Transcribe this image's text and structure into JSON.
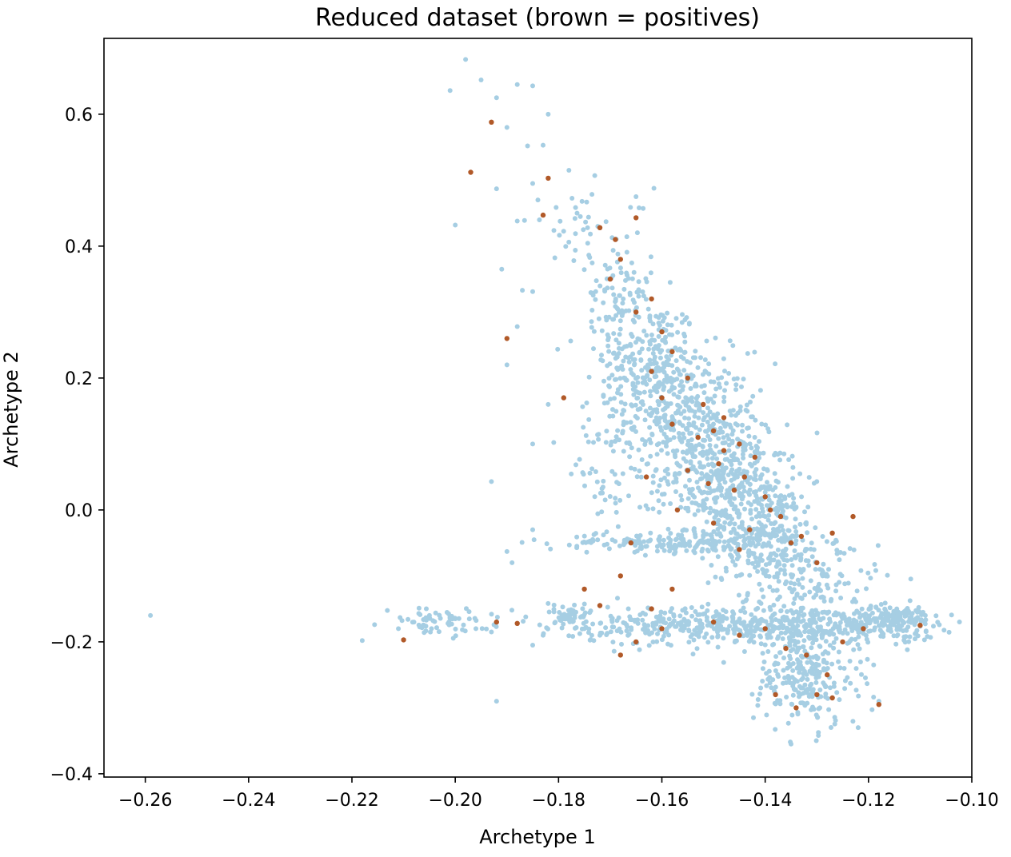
{
  "chart_data": {
    "type": "scatter",
    "title": "Reduced dataset (brown = positives)",
    "xlabel": "Archetype 1",
    "ylabel": "Archetype 2",
    "xlim": [
      -0.268,
      -0.1
    ],
    "ylim": [
      -0.405,
      0.715
    ],
    "xticks": [
      -0.26,
      -0.24,
      -0.22,
      -0.2,
      -0.18,
      -0.16,
      -0.14,
      -0.12,
      -0.1
    ],
    "xtick_labels": [
      "−0.26",
      "−0.24",
      "−0.22",
      "−0.20",
      "−0.18",
      "−0.16",
      "−0.14",
      "−0.12",
      "−0.10"
    ],
    "yticks": [
      -0.4,
      -0.2,
      0.0,
      0.2,
      0.4,
      0.6
    ],
    "ytick_labels": [
      "−0.4",
      "−0.2",
      "0.0",
      "0.2",
      "0.4",
      "0.6"
    ],
    "grid": false,
    "series": [
      {
        "color": "#a6cee3",
        "points": [
          [
            -0.259,
            -0.16
          ],
          [
            -0.218,
            -0.198
          ],
          [
            -0.192,
            -0.29
          ],
          [
            -0.2,
            0.432
          ],
          [
            -0.201,
            0.636
          ],
          [
            -0.198,
            0.683
          ],
          [
            -0.195,
            0.652
          ],
          [
            -0.192,
            0.625
          ],
          [
            -0.19,
            0.58
          ],
          [
            -0.188,
            0.645
          ],
          [
            -0.185,
            0.643
          ],
          [
            -0.182,
            0.6
          ],
          [
            -0.186,
            0.552
          ],
          [
            -0.183,
            0.553
          ],
          [
            -0.185,
            0.495
          ],
          [
            -0.192,
            0.487
          ],
          [
            -0.188,
            0.438
          ],
          [
            -0.178,
            0.515
          ],
          [
            -0.184,
            0.47
          ],
          [
            -0.191,
            0.365
          ],
          [
            -0.187,
            0.333
          ],
          [
            -0.185,
            0.331
          ],
          [
            -0.188,
            0.278
          ],
          [
            -0.19,
            0.22
          ],
          [
            -0.193,
            0.043
          ],
          [
            -0.189,
            -0.08
          ],
          [
            -0.19,
            -0.063
          ],
          [
            -0.185,
            -0.03
          ],
          [
            -0.185,
            0.1
          ],
          [
            -0.182,
            0.16
          ],
          [
            -0.165,
            0.475
          ],
          [
            -0.211,
            -0.18
          ],
          [
            -0.208,
            -0.17
          ],
          [
            -0.205,
            -0.16
          ],
          [
            -0.2,
            -0.165
          ],
          [
            -0.196,
            -0.18
          ],
          [
            -0.193,
            -0.185
          ],
          [
            -0.185,
            -0.205
          ],
          [
            -0.183,
            -0.19
          ],
          [
            -0.112,
            -0.165
          ],
          [
            -0.109,
            -0.16
          ],
          [
            -0.122,
            -0.33
          ],
          [
            -0.135,
            -0.355
          ],
          [
            -0.118,
            -0.29
          ],
          [
            -0.119,
            -0.235
          ]
        ],
        "clusters": [
          {
            "cx": -0.162,
            "cy": 0.22,
            "sx": 0.0045,
            "sy": 0.05,
            "n": 220,
            "rot": 0.0
          },
          {
            "cx": -0.155,
            "cy": 0.14,
            "sx": 0.006,
            "sy": 0.05,
            "n": 300,
            "rot": 0.0
          },
          {
            "cx": -0.148,
            "cy": 0.05,
            "sx": 0.006,
            "sy": 0.05,
            "n": 380,
            "rot": 0.0
          },
          {
            "cx": -0.14,
            "cy": -0.04,
            "sx": 0.006,
            "sy": 0.045,
            "n": 320,
            "rot": 0.0
          },
          {
            "cx": -0.168,
            "cy": 0.33,
            "sx": 0.003,
            "sy": 0.035,
            "n": 90,
            "rot": 0.0
          },
          {
            "cx": -0.158,
            "cy": -0.05,
            "sx": 0.012,
            "sy": 0.008,
            "n": 180,
            "rot": 0.0
          },
          {
            "cx": -0.13,
            "cy": -0.175,
            "sx": 0.012,
            "sy": 0.015,
            "n": 320,
            "rot": 0.0
          },
          {
            "cx": -0.155,
            "cy": -0.175,
            "sx": 0.012,
            "sy": 0.015,
            "n": 260,
            "rot": 0.0
          },
          {
            "cx": -0.115,
            "cy": -0.165,
            "sx": 0.004,
            "sy": 0.01,
            "n": 120,
            "rot": 0.0
          },
          {
            "cx": -0.132,
            "cy": -0.25,
            "sx": 0.005,
            "sy": 0.04,
            "n": 260,
            "rot": 0.0
          },
          {
            "cx": -0.13,
            "cy": -0.11,
            "sx": 0.006,
            "sy": 0.03,
            "n": 90,
            "rot": 0.0
          },
          {
            "cx": -0.203,
            "cy": -0.17,
            "sx": 0.005,
            "sy": 0.01,
            "n": 60,
            "rot": 0.0
          },
          {
            "cx": -0.178,
            "cy": -0.16,
            "sx": 0.004,
            "sy": 0.01,
            "n": 50,
            "rot": 0.0
          },
          {
            "cx": -0.17,
            "cy": 0.1,
            "sx": 0.005,
            "sy": 0.08,
            "n": 90,
            "rot": 0.0
          },
          {
            "cx": -0.174,
            "cy": 0.43,
            "sx": 0.006,
            "sy": 0.03,
            "n": 40,
            "rot": 0.0
          }
        ]
      },
      {
        "color": "#b15928",
        "points": [
          [
            -0.193,
            0.588
          ],
          [
            -0.197,
            0.512
          ],
          [
            -0.182,
            0.503
          ],
          [
            -0.183,
            0.447
          ],
          [
            -0.172,
            0.428
          ],
          [
            -0.165,
            0.443
          ],
          [
            -0.169,
            0.41
          ],
          [
            -0.168,
            0.38
          ],
          [
            -0.19,
            0.26
          ],
          [
            -0.179,
            0.17
          ],
          [
            -0.21,
            -0.197
          ],
          [
            -0.192,
            -0.17
          ],
          [
            -0.188,
            -0.172
          ],
          [
            -0.175,
            -0.12
          ],
          [
            -0.172,
            -0.145
          ],
          [
            -0.165,
            -0.2
          ],
          [
            -0.11,
            -0.175
          ],
          [
            -0.118,
            -0.295
          ],
          [
            -0.123,
            -0.01
          ],
          [
            -0.127,
            -0.035
          ],
          [
            -0.162,
            0.32
          ],
          [
            -0.165,
            0.3
          ],
          [
            -0.16,
            0.27
          ],
          [
            -0.158,
            0.24
          ],
          [
            -0.155,
            0.2
          ],
          [
            -0.16,
            0.17
          ],
          [
            -0.152,
            0.16
          ],
          [
            -0.148,
            0.14
          ],
          [
            -0.15,
            0.12
          ],
          [
            -0.145,
            0.1
          ],
          [
            -0.148,
            0.09
          ],
          [
            -0.142,
            0.08
          ],
          [
            -0.155,
            0.06
          ],
          [
            -0.151,
            0.04
          ],
          [
            -0.146,
            0.03
          ],
          [
            -0.14,
            0.02
          ],
          [
            -0.157,
            0.0
          ],
          [
            -0.15,
            -0.02
          ],
          [
            -0.143,
            -0.03
          ],
          [
            -0.137,
            -0.01
          ],
          [
            -0.135,
            -0.05
          ],
          [
            -0.145,
            -0.06
          ],
          [
            -0.13,
            -0.08
          ],
          [
            -0.125,
            -0.2
          ],
          [
            -0.128,
            -0.25
          ],
          [
            -0.132,
            -0.22
          ],
          [
            -0.136,
            -0.21
          ],
          [
            -0.14,
            -0.18
          ],
          [
            -0.13,
            -0.28
          ],
          [
            -0.127,
            -0.285
          ],
          [
            -0.145,
            -0.19
          ],
          [
            -0.15,
            -0.17
          ],
          [
            -0.16,
            -0.18
          ],
          [
            -0.168,
            -0.22
          ],
          [
            -0.17,
            0.35
          ],
          [
            -0.162,
            0.21
          ],
          [
            -0.158,
            0.13
          ],
          [
            -0.153,
            0.11
          ],
          [
            -0.149,
            0.07
          ],
          [
            -0.144,
            0.05
          ],
          [
            -0.139,
            0.0
          ],
          [
            -0.133,
            -0.04
          ],
          [
            -0.121,
            -0.18
          ],
          [
            -0.138,
            -0.28
          ],
          [
            -0.134,
            -0.3
          ],
          [
            -0.163,
            0.05
          ],
          [
            -0.166,
            -0.05
          ],
          [
            -0.168,
            -0.1
          ],
          [
            -0.158,
            -0.12
          ],
          [
            -0.162,
            -0.15
          ]
        ],
        "clusters": []
      }
    ]
  }
}
